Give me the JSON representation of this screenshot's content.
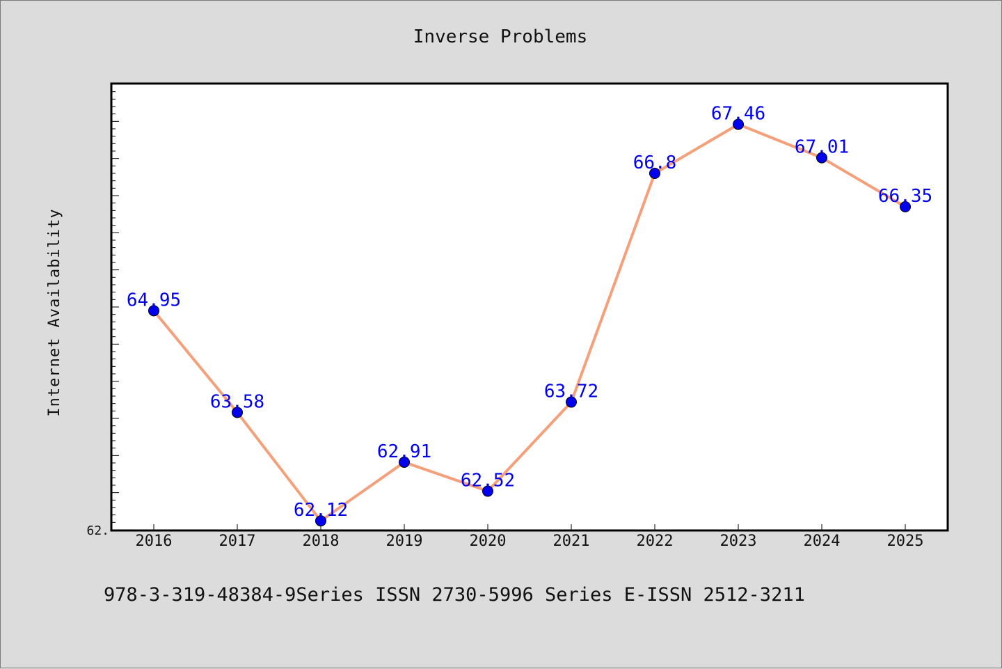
{
  "chart_data": {
    "type": "line",
    "title": "Inverse Problems",
    "ylabel": "Internet Availability",
    "xlabel": "",
    "categories": [
      "2016",
      "2017",
      "2018",
      "2019",
      "2020",
      "2021",
      "2022",
      "2023",
      "2024",
      "2025"
    ],
    "series": [
      {
        "values": [
          64.95,
          63.58,
          62.12,
          62.91,
          62.52,
          63.72,
          66.8,
          67.46,
          67.01,
          66.35
        ]
      }
    ],
    "data_labels": [
      "64.95",
      "63.58",
      "62.12",
      "62.91",
      "62.52",
      "63.72",
      "66.8",
      "67.46",
      "67.01",
      "66.35"
    ],
    "ylim": [
      62.0,
      68.0
    ],
    "y_tick_label": "62.",
    "grid": false,
    "line_color": "#f4a07a",
    "marker_color": "#0000ee",
    "label_color": "#0000ee"
  },
  "footer": "978-3-319-48384-9Series ISSN 2730-5996 Series E-ISSN 2512-3211"
}
